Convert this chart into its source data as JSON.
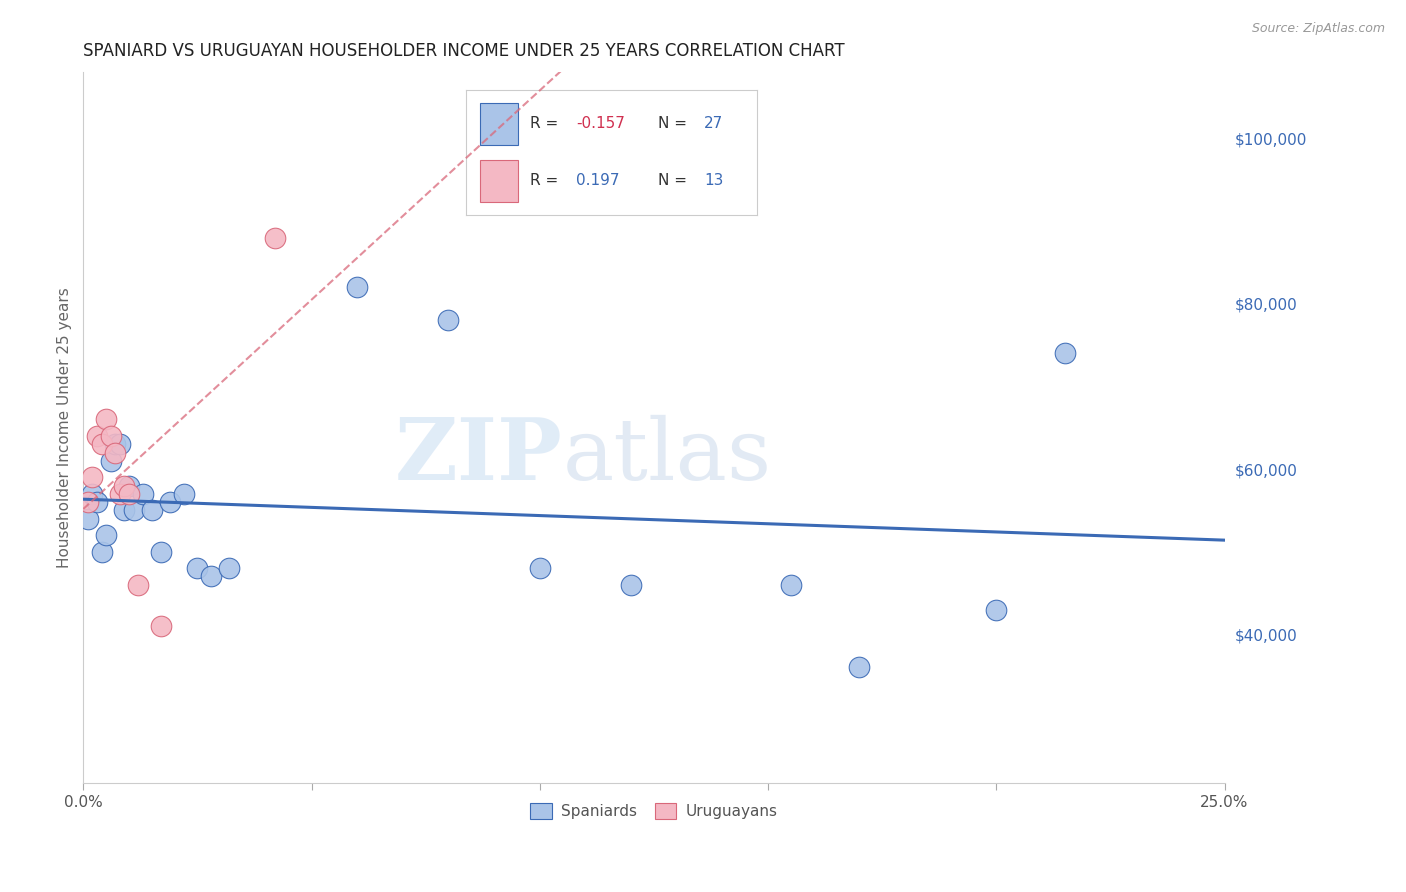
{
  "title": "SPANIARD VS URUGUAYAN HOUSEHOLDER INCOME UNDER 25 YEARS CORRELATION CHART",
  "source": "Source: ZipAtlas.com",
  "ylabel": "Householder Income Under 25 years",
  "right_yticks": [
    "$100,000",
    "$80,000",
    "$60,000",
    "$40,000"
  ],
  "right_ytick_values": [
    100000,
    80000,
    60000,
    40000
  ],
  "ylim": [
    22000,
    108000
  ],
  "xlim": [
    0.0,
    0.25
  ],
  "spaniards_x": [
    0.001,
    0.002,
    0.003,
    0.004,
    0.005,
    0.006,
    0.007,
    0.008,
    0.009,
    0.01,
    0.011,
    0.013,
    0.015,
    0.017,
    0.019,
    0.022,
    0.025,
    0.028,
    0.032,
    0.06,
    0.08,
    0.1,
    0.12,
    0.155,
    0.17,
    0.2,
    0.215
  ],
  "spaniards_y": [
    54000,
    57000,
    56000,
    50000,
    52000,
    61000,
    63000,
    63000,
    55000,
    58000,
    55000,
    57000,
    55000,
    50000,
    56000,
    57000,
    48000,
    47000,
    48000,
    82000,
    78000,
    48000,
    46000,
    46000,
    36000,
    43000,
    74000
  ],
  "uruguayans_x": [
    0.001,
    0.002,
    0.003,
    0.004,
    0.005,
    0.006,
    0.007,
    0.008,
    0.009,
    0.01,
    0.012,
    0.017,
    0.042
  ],
  "uruguayans_y": [
    56000,
    59000,
    64000,
    63000,
    66000,
    64000,
    62000,
    57000,
    58000,
    57000,
    46000,
    41000,
    88000
  ],
  "spaniards_color": "#aac4e8",
  "uruguayans_color": "#f4b8c4",
  "spaniards_line_color": "#3b6ab5",
  "uruguayans_line_color": "#d9687a",
  "watermark_zip": "ZIP",
  "watermark_atlas": "atlas",
  "background_color": "#ffffff",
  "grid_color": "#cccccc",
  "legend_R_color": "#d03050",
  "legend_N_color": "#3b6ab5"
}
